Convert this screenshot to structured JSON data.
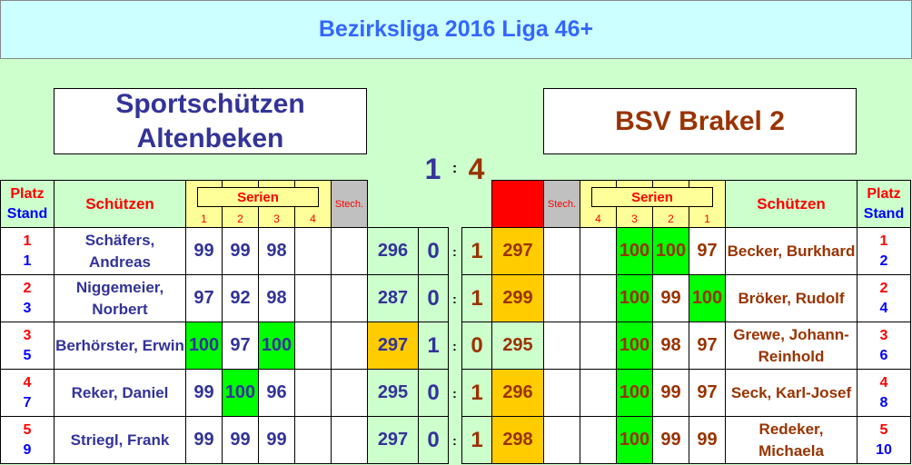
{
  "title": "Bezirksliga 2016 Liga 46+",
  "home_team": "Sportschützen Altenbeken",
  "away_team": "BSV Brakel 2",
  "score": {
    "home": "1",
    "sep": ":",
    "away": "4"
  },
  "headers": {
    "platz": "Platz",
    "stand": "Stand",
    "schuetzen": "Schützen",
    "serien": "Serien",
    "stech": "Stech.",
    "series_nums": [
      "1",
      "2",
      "3",
      "4"
    ]
  },
  "colors": {
    "highlight_100": "#00ff00",
    "winner_total": "#ffcc00",
    "away_marker": "#ff0000"
  },
  "rows": [
    {
      "h_platz": "1",
      "h_stand": "1",
      "h_name": "Schäfers, Andreas",
      "h_s": [
        "99",
        "99",
        "98",
        ""
      ],
      "h_total": "296",
      "h_pts": "0",
      "a_pts": "1",
      "a_total": "297",
      "a_s": [
        "97",
        "100",
        "100",
        ""
      ],
      "a_name": "Becker, Burkhard",
      "a_platz": "1",
      "a_stand": "2"
    },
    {
      "h_platz": "2",
      "h_stand": "3",
      "h_name": "Niggemeier, Norbert",
      "h_s": [
        "97",
        "92",
        "98",
        ""
      ],
      "h_total": "287",
      "h_pts": "0",
      "a_pts": "1",
      "a_total": "299",
      "a_s": [
        "100",
        "99",
        "100",
        ""
      ],
      "a_name": "Bröker, Rudolf",
      "a_platz": "2",
      "a_stand": "4"
    },
    {
      "h_platz": "3",
      "h_stand": "5",
      "h_name": "Berhörster, Erwin",
      "h_s": [
        "100",
        "97",
        "100",
        ""
      ],
      "h_total": "297",
      "h_pts": "1",
      "a_pts": "0",
      "a_total": "295",
      "a_s": [
        "97",
        "98",
        "100",
        ""
      ],
      "a_name": "Grewe, Johann-Reinhold",
      "a_platz": "3",
      "a_stand": "6"
    },
    {
      "h_platz": "4",
      "h_stand": "7",
      "h_name": "Reker, Daniel",
      "h_s": [
        "99",
        "100",
        "96",
        ""
      ],
      "h_total": "295",
      "h_pts": "0",
      "a_pts": "1",
      "a_total": "296",
      "a_s": [
        "97",
        "99",
        "100",
        ""
      ],
      "a_name": "Seck, Karl-Josef",
      "a_platz": "4",
      "a_stand": "8"
    },
    {
      "h_platz": "5",
      "h_stand": "9",
      "h_name": "Striegl, Frank",
      "h_s": [
        "99",
        "99",
        "99",
        ""
      ],
      "h_total": "297",
      "h_pts": "0",
      "a_pts": "1",
      "a_total": "298",
      "a_s": [
        "99",
        "99",
        "100",
        ""
      ],
      "a_name": "Redeker, Michaela",
      "a_platz": "5",
      "a_stand": "10"
    }
  ]
}
